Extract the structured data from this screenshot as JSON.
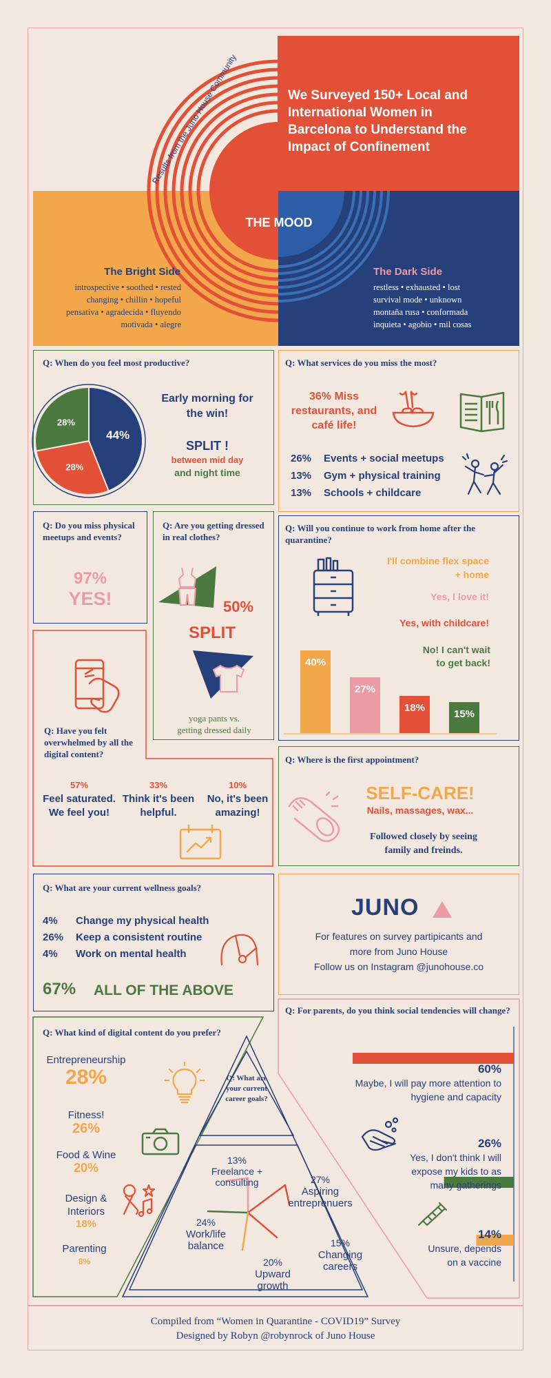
{
  "colors": {
    "bg": "#f3e8df",
    "navy": "#25407a",
    "red": "#e25038",
    "orange": "#f2a74b",
    "green": "#4a7a3f",
    "pink": "#e99ba6"
  },
  "header": {
    "arc_caption": "Results from the Juno House Community",
    "title": "We Surveyed 150+ Local and International Women in Barcelona to Understand the Impact of Confinement",
    "mood": "THE MOOD",
    "bright": {
      "title": "The Bright Side",
      "line1": "introspective • soothed • rested",
      "line2": "changing • chillin • hopeful",
      "line3": "pensativa • agradecida • fluyendo",
      "line4": "motivada • alegre"
    },
    "dark": {
      "title": "The Dark Side",
      "line1": "restless • exhausted • lost",
      "line2": "survival mode • unknown",
      "line3": "montaña rusa • conformada",
      "line4": "inquieta • agobio • mil cosas"
    }
  },
  "productive": {
    "question": "Q: When do you feel  most productive?",
    "headline": "Early morning for the win!",
    "split": "SPLIT !",
    "split_sub1": "between mid day",
    "split_sub2": "and night time",
    "labels": [
      "44%",
      "28%",
      "28%"
    ]
  },
  "services": {
    "question": "Q: What services do you miss the most?",
    "headline": "36% Miss restaurants, and café life!",
    "items": [
      {
        "pct": "26%",
        "label": "Events + social meetups"
      },
      {
        "pct": "13%",
        "label": "Gym + physical training"
      },
      {
        "pct": "13%",
        "label": "Schools + childcare"
      }
    ]
  },
  "meetups": {
    "question": "Q: Do you miss physical meetups and events?",
    "value": "97%",
    "answer": "YES!"
  },
  "dressed": {
    "question": "Q: Are you getting dressed in real clothes?",
    "value": "50%",
    "split": "SPLIT",
    "caption1": "yoga pants vs.",
    "caption2": "getting dressed daily"
  },
  "wfh": {
    "question": "Q: Will you continue to work from home after the quarantine?",
    "answers": [
      "I'll combine flex space + home",
      "Yes, I love it!",
      "Yes, with childcare!",
      "No! I can't wait to get back!"
    ]
  },
  "digital_overwhelm": {
    "question": "Q: Have you felt overwhelmed by all the digital content?",
    "items": [
      {
        "pct": "57%",
        "label": "Feel saturated. We feel you!"
      },
      {
        "pct": "33%",
        "label": "Think it's been helpful."
      },
      {
        "pct": "10%",
        "label": "No, it's been amazing!"
      }
    ]
  },
  "appointment": {
    "question": "Q: Where is the first appointment?",
    "headline": "SELF-CARE!",
    "sub": "Nails, massages, wax...",
    "note": "Followed closely by seeing family and freinds."
  },
  "wellness": {
    "question": "Q: What are your current wellness goals?",
    "items": [
      {
        "pct": "4%",
        "label": "Change my physical health"
      },
      {
        "pct": "26%",
        "label": "Keep a consistent routine"
      },
      {
        "pct": "4%",
        "label": "Work on mental health"
      }
    ],
    "all_pct": "67%",
    "all_label": "ALL OF THE ABOVE"
  },
  "juno": {
    "logo": "JUNO",
    "line1": "For features on survey partipicants and",
    "line2": "more from Juno House",
    "line3": "Follow us on Instagram @junohouse.co"
  },
  "content_pref": {
    "question": "Q: What kind of digital content do you prefer?",
    "items": [
      {
        "label": "Entrepreneurship",
        "pct": "28%"
      },
      {
        "label": "Fitness!",
        "pct": "26%"
      },
      {
        "label": "Food & Wine",
        "pct": "20%"
      },
      {
        "label": "Design & Interiors",
        "pct": "18%"
      },
      {
        "label": "Parenting",
        "pct": "8%"
      }
    ]
  },
  "career": {
    "question": "Q: What are your current career goals?",
    "items": [
      {
        "pct": "13%",
        "label": "Freelance + consulting"
      },
      {
        "pct": "27%",
        "label": "Aspiring entreprenuers"
      },
      {
        "pct": "24%",
        "label": "Work/life balance"
      },
      {
        "pct": "15%",
        "label": "Changing careers"
      },
      {
        "pct": "20%",
        "label": "Upward growth"
      }
    ]
  },
  "parents": {
    "question": "Q: For parents, do you think social tendencies will change?",
    "items": [
      {
        "pct": "60%",
        "label": "Maybe, I will pay more attention to hygiene and capacity"
      },
      {
        "pct": "26%",
        "label": "Yes, I don't think I will expose my kids to as many gatherings"
      },
      {
        "pct": "14%",
        "label": "Unsure, depends on a vaccine"
      }
    ]
  },
  "footer": {
    "line1": "Compiled from “Women in Quarantine - COVID19” Survey",
    "line2": "Designed by Robyn @robynrock of Juno House"
  },
  "chart_data": [
    {
      "type": "pie",
      "title": "When do you feel most productive?",
      "labels": [
        "Early morning",
        "Mid day",
        "Night time"
      ],
      "values": [
        44,
        28,
        28
      ]
    },
    {
      "type": "bar",
      "title": "Will you continue to work from home after the quarantine?",
      "categories": [
        "I'll combine flex space + home",
        "Yes, I love it!",
        "Yes, with childcare!",
        "No! I can't wait to get back!"
      ],
      "values": [
        40,
        27,
        18,
        15
      ]
    },
    {
      "type": "bar",
      "title": "For parents, do you think social tendencies will change?",
      "categories": [
        "Maybe, I will pay more attention to hygiene and capacity",
        "Yes, I don't think I will expose my kids to as many gatherings",
        "Unsure, depends on a vaccine"
      ],
      "values": [
        60,
        26,
        14
      ]
    }
  ]
}
